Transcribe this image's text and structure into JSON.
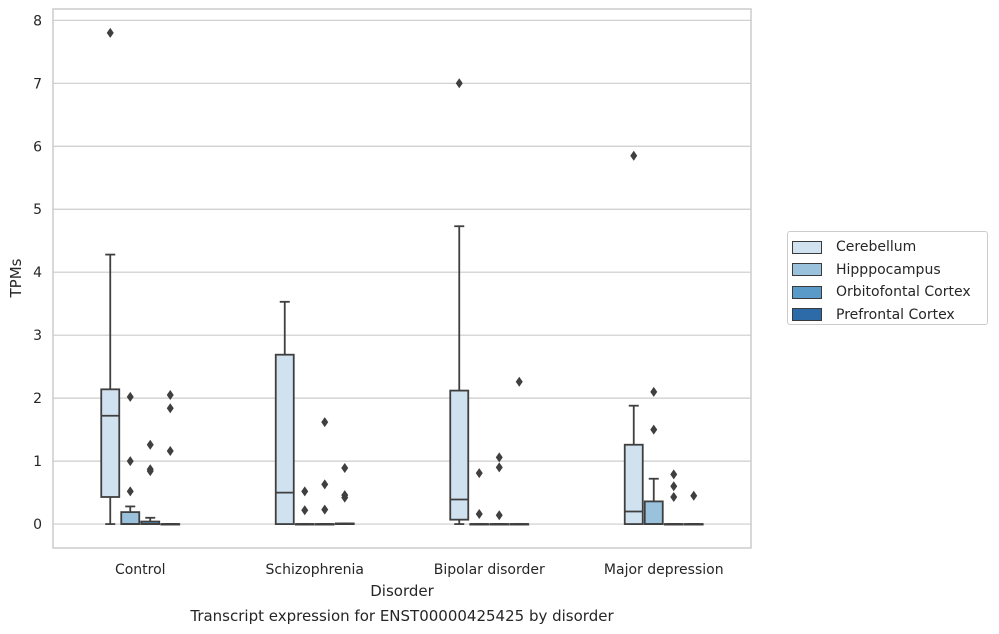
{
  "caption": "Transcript expression for ENST00000425425 by disorder",
  "chart_data": {
    "type": "boxplot",
    "xlabel": "Disorder",
    "ylabel": "TPMs",
    "ylim": [
      -0.38,
      8.18
    ],
    "yticks": [
      0,
      1,
      2,
      3,
      4,
      5,
      6,
      7,
      8
    ],
    "grid": true,
    "legend_position": "right",
    "categories": [
      "Control",
      "Schizophrenia",
      "Bipolar disorder",
      "Major depression"
    ],
    "series": [
      {
        "name": "Cerebellum",
        "color": "#d0e1f0",
        "boxes": [
          {
            "q1": 0.43,
            "median": 1.72,
            "q3": 2.14,
            "whisker_low": 0.0,
            "whisker_high": 4.28,
            "outliers": [
              7.8
            ]
          },
          {
            "q1": 0.0,
            "median": 0.5,
            "q3": 2.69,
            "whisker_low": 0.0,
            "whisker_high": 3.53,
            "outliers": []
          },
          {
            "q1": 0.07,
            "median": 0.39,
            "q3": 2.12,
            "whisker_low": 0.0,
            "whisker_high": 4.73,
            "outliers": [
              7.0
            ]
          },
          {
            "q1": 0.0,
            "median": 0.2,
            "q3": 1.26,
            "whisker_low": 0.0,
            "whisker_high": 1.88,
            "outliers": [
              5.85
            ]
          }
        ]
      },
      {
        "name": "Hipppocampus",
        "color": "#9ac2dc",
        "boxes": [
          {
            "q1": 0.0,
            "median": 0.0,
            "q3": 0.19,
            "whisker_low": 0.0,
            "whisker_high": 0.28,
            "outliers": [
              2.02,
              1.0,
              0.52
            ]
          },
          {
            "q1": 0.0,
            "median": 0.0,
            "q3": 0.0,
            "whisker_low": 0.0,
            "whisker_high": 0.0,
            "outliers": [
              0.52,
              0.22
            ]
          },
          {
            "q1": 0.0,
            "median": 0.0,
            "q3": 0.0,
            "whisker_low": 0.0,
            "whisker_high": 0.0,
            "outliers": [
              0.81,
              0.16
            ]
          },
          {
            "q1": 0.0,
            "median": 0.0,
            "q3": 0.36,
            "whisker_low": 0.0,
            "whisker_high": 0.72,
            "outliers": [
              2.1,
              1.5
            ]
          }
        ]
      },
      {
        "name": "Orbitofontal Cortex",
        "color": "#5a9ac8",
        "boxes": [
          {
            "q1": 0.0,
            "median": 0.0,
            "q3": 0.04,
            "whisker_low": 0.0,
            "whisker_high": 0.1,
            "outliers": [
              1.26,
              0.87,
              0.84
            ]
          },
          {
            "q1": 0.0,
            "median": 0.0,
            "q3": 0.0,
            "whisker_low": 0.0,
            "whisker_high": 0.0,
            "outliers": [
              1.62,
              0.63,
              0.23
            ]
          },
          {
            "q1": 0.0,
            "median": 0.0,
            "q3": 0.0,
            "whisker_low": 0.0,
            "whisker_high": 0.0,
            "outliers": [
              1.06,
              0.9,
              0.14
            ]
          },
          {
            "q1": 0.0,
            "median": 0.0,
            "q3": 0.0,
            "whisker_low": 0.0,
            "whisker_high": 0.0,
            "outliers": [
              0.79,
              0.6,
              0.43
            ]
          }
        ]
      },
      {
        "name": "Prefrontal Cortex",
        "color": "#2d6ba8",
        "boxes": [
          {
            "q1": 0.0,
            "median": 0.0,
            "q3": 0.0,
            "whisker_low": 0.0,
            "whisker_high": 0.0,
            "outliers": [
              2.05,
              1.84,
              1.16
            ]
          },
          {
            "q1": 0.0,
            "median": 0.0,
            "q3": 0.01,
            "whisker_low": 0.0,
            "whisker_high": 0.01,
            "outliers": [
              0.89,
              0.46,
              0.42
            ]
          },
          {
            "q1": 0.0,
            "median": 0.0,
            "q3": 0.0,
            "whisker_low": 0.0,
            "whisker_high": 0.0,
            "outliers": [
              2.26
            ]
          },
          {
            "q1": 0.0,
            "median": 0.0,
            "q3": 0.0,
            "whisker_low": 0.0,
            "whisker_high": 0.0,
            "outliers": [
              0.45
            ]
          }
        ]
      }
    ]
  }
}
